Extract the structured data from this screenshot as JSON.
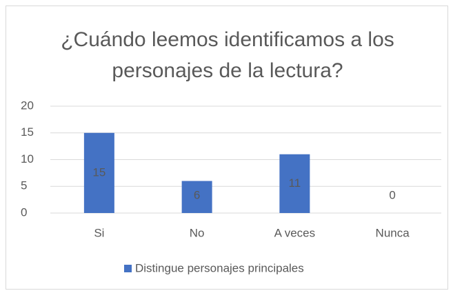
{
  "chart_data": {
    "type": "bar",
    "title": "¿Cuándo leemos identificamos a los personajes de la lectura?",
    "categories": [
      "Si",
      "No",
      "A veces",
      "Nunca"
    ],
    "series": [
      {
        "name": "Distingue personajes principales",
        "color": "#4472c4",
        "values": [
          15,
          6,
          11,
          0
        ]
      }
    ],
    "ylim": [
      0,
      20
    ],
    "yticks": [
      0,
      5,
      10,
      15,
      20
    ],
    "grid": true,
    "legend": "bottom",
    "data_labels": true
  }
}
